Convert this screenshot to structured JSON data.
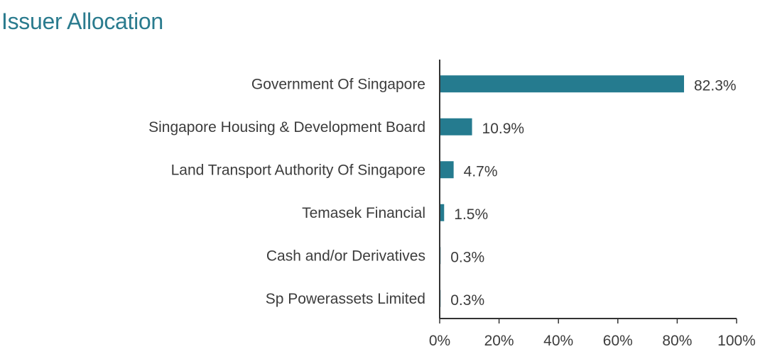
{
  "colors": {
    "title": "#2a7b8e",
    "bar": "#257b8f",
    "axis": "#333333",
    "text": "#3c3c3c"
  },
  "chart_data": {
    "type": "bar",
    "orientation": "horizontal",
    "title": "Issuer Allocation",
    "categories": [
      "Government Of Singapore",
      "Singapore Housing & Development Board",
      "Land Transport Authority Of Singapore",
      "Temasek Financial",
      "Cash and/or Derivatives",
      "Sp Powerassets Limited"
    ],
    "values": [
      82.3,
      10.9,
      4.7,
      1.5,
      0.3,
      0.3
    ],
    "value_labels": [
      "82.3%",
      "10.9%",
      "4.7%",
      "1.5%",
      "0.3%",
      "0.3%"
    ],
    "xlim": [
      0,
      100
    ],
    "x_ticks": [
      0,
      20,
      40,
      60,
      80,
      100
    ],
    "x_tick_labels": [
      "0%",
      "20%",
      "40%",
      "60%",
      "80%",
      "100%"
    ],
    "xlabel": "",
    "ylabel": "",
    "grid": false,
    "legend": "none"
  }
}
